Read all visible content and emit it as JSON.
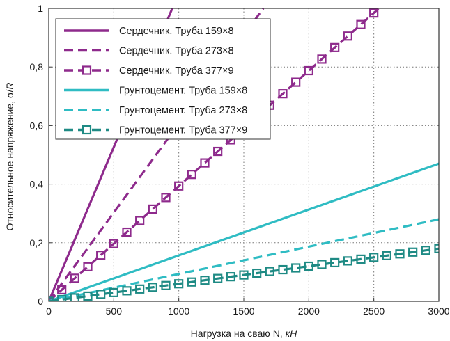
{
  "chart_data": {
    "type": "line",
    "xlabel": "Нагрузка на сваю N, ",
    "xlabel_unit": "кН",
    "ylabel": "Относительное напряжение, σ/",
    "ylabel_unit": "R",
    "xlim": [
      0,
      3000
    ],
    "ylim": [
      0,
      1
    ],
    "x_ticks": [
      0,
      500,
      1000,
      1500,
      2000,
      2500,
      3000
    ],
    "y_ticks": [
      0,
      0.2,
      0.4,
      0.6,
      0.8,
      1
    ],
    "x_tick_labels": [
      "0",
      "500",
      "1000",
      "1500",
      "2000",
      "2500",
      "3000"
    ],
    "y_tick_labels": [
      "0",
      "0,2",
      "0,4",
      "0,6",
      "0,8",
      "1"
    ],
    "grid": true,
    "legend_position": "top-left",
    "series": [
      {
        "name": "Сердечник. Труба 159×8",
        "color": "#8e2a8c",
        "style": "solid",
        "marker": "none",
        "x": [
          0,
          950
        ],
        "y": [
          0,
          1.0
        ]
      },
      {
        "name": "Сердечник. Труба 273×8",
        "color": "#8e2a8c",
        "style": "dashed",
        "marker": "none",
        "x": [
          0,
          1650
        ],
        "y": [
          0,
          1.0
        ]
      },
      {
        "name": "Сердечник. Труба 377×9",
        "color": "#8e2a8c",
        "style": "dashed",
        "marker": "square",
        "x": [
          0,
          2540
        ],
        "y": [
          0,
          1.0
        ]
      },
      {
        "name": "Грунтоцемент. Труба 159×8",
        "color": "#2fbcc3",
        "style": "solid",
        "marker": "none",
        "x": [
          0,
          3000
        ],
        "y": [
          0,
          0.47
        ]
      },
      {
        "name": "Грунтоцемент. Труба 273×8",
        "color": "#2fbcc3",
        "style": "dashed",
        "marker": "none",
        "x": [
          0,
          3000
        ],
        "y": [
          0,
          0.28
        ]
      },
      {
        "name": "Грунтоцемент. Труба 377×9",
        "color": "#1e8a84",
        "style": "dashed",
        "marker": "square",
        "x": [
          0,
          3000
        ],
        "y": [
          0,
          0.18
        ]
      }
    ]
  }
}
